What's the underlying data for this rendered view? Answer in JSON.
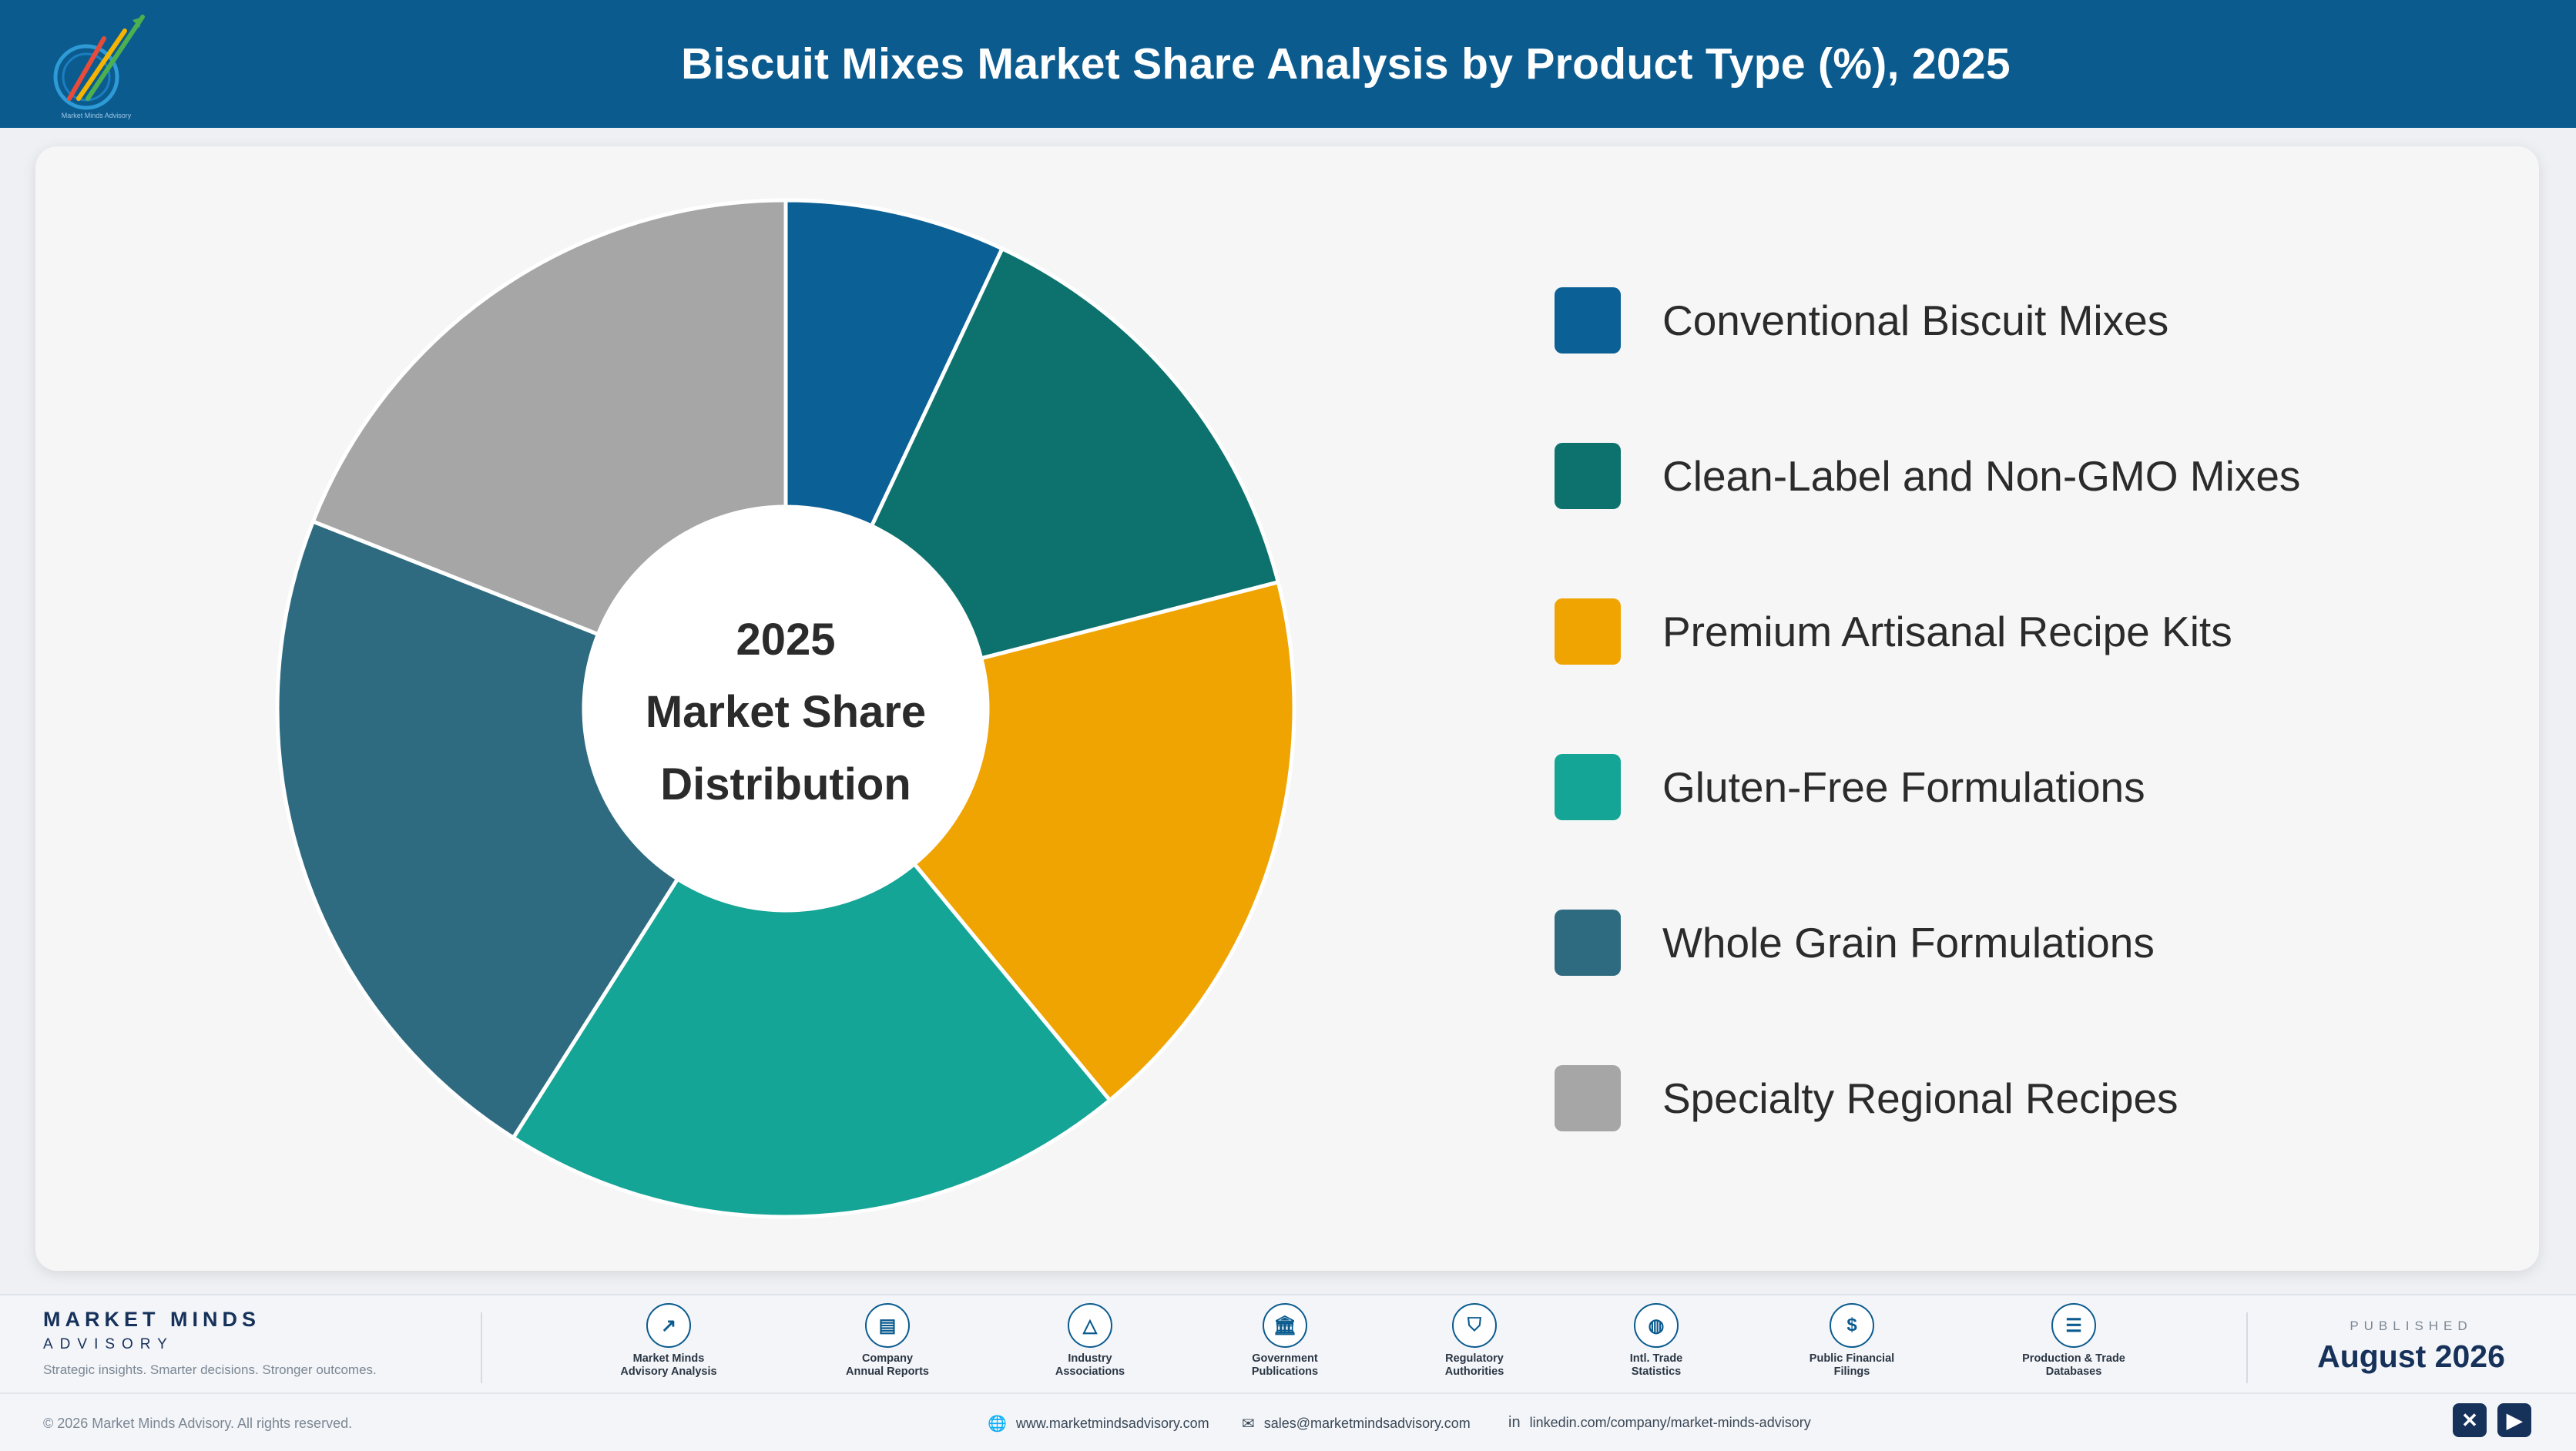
{
  "header": {
    "title": "Biscuit Mixes Market Share Analysis by Product Type (%), 2025",
    "logo_text": "Market Minds Advisory",
    "background_color": "#0b5b8f"
  },
  "chart_data": {
    "type": "pie",
    "variant": "donut",
    "center_label": [
      "2025",
      "Market Share",
      "Distribution"
    ],
    "categories": [
      "Conventional Biscuit Mixes",
      "Clean-Label and Non-GMO Mixes",
      "Premium Artisanal Recipe Kits",
      "Gluten-Free Formulations",
      "Whole Grain Formulations",
      "Specialty Regional Recipes"
    ],
    "values": [
      7,
      14,
      18,
      20,
      22,
      19
    ],
    "colors": [
      "#0b6096",
      "#0d726d",
      "#f0a402",
      "#14a596",
      "#2f6b80",
      "#a6a6a6"
    ],
    "legend_position": "right",
    "start_angle": "top",
    "direction": "clockwise"
  },
  "footer": {
    "brand_name": "MARKET MINDS",
    "brand_sub": "ADVISORY",
    "tagline": "Strategic insights. Smarter decisions. Stronger outcomes.",
    "sources": [
      {
        "label": "Market Minds\nAdvisory Analysis",
        "icon": "chart-line-icon"
      },
      {
        "label": "Company\nAnnual Reports",
        "icon": "document-icon"
      },
      {
        "label": "Industry\nAssociations",
        "icon": "network-icon"
      },
      {
        "label": "Government\nPublications",
        "icon": "building-icon"
      },
      {
        "label": "Regulatory\nAuthorities",
        "icon": "shield-icon"
      },
      {
        "label": "Intl. Trade\nStatistics",
        "icon": "globe-icon"
      },
      {
        "label": "Public Financial\nFilings",
        "icon": "dollar-icon"
      },
      {
        "label": "Production & Trade\nDatabases",
        "icon": "database-icon"
      }
    ],
    "published_label": "PUBLISHED",
    "published_date": "August 2026",
    "copyright": "© 2026 Market Minds Advisory. All rights reserved.",
    "website": "www.marketmindsadvisory.com",
    "email": "sales@marketmindsadvisory.com",
    "linkedin": "linkedin.com/company/market-minds-advisory",
    "social": [
      "x-icon",
      "youtube-icon"
    ]
  }
}
